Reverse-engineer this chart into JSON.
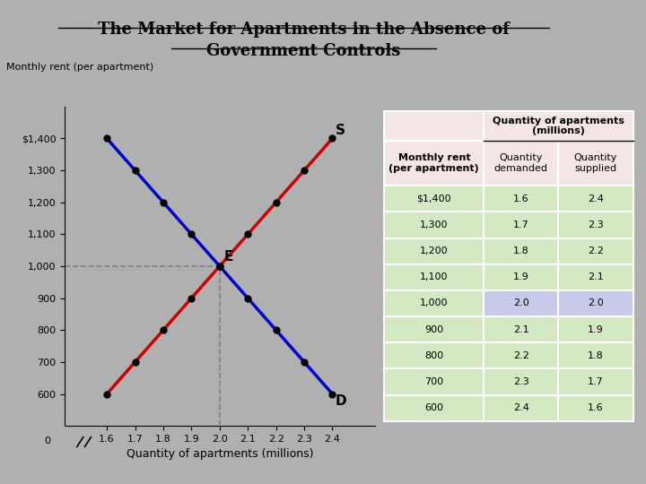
{
  "title_line1": "The Market for Apartments in the Absence of",
  "title_line2": "Government Controls",
  "ylabel": "Monthly rent (per apartment)",
  "xlabel": "Quantity of apartments (millions)",
  "background_color": "#b0b0b0",
  "supply_x": [
    1.6,
    1.7,
    1.8,
    1.9,
    2.0,
    2.1,
    2.2,
    2.3,
    2.4
  ],
  "supply_y": [
    600,
    700,
    800,
    900,
    1000,
    1100,
    1200,
    1300,
    1400
  ],
  "demand_x": [
    1.6,
    1.7,
    1.8,
    1.9,
    2.0,
    2.1,
    2.2,
    2.3,
    2.4
  ],
  "demand_y": [
    1400,
    1300,
    1200,
    1100,
    1000,
    900,
    800,
    700,
    600
  ],
  "supply_color": "#cc0000",
  "demand_color": "#0000cc",
  "equilibrium_x": 2.0,
  "equilibrium_y": 1000,
  "eq_label": "E",
  "supply_label": "S",
  "demand_label": "D",
  "yticks": [
    600,
    700,
    800,
    900,
    1000,
    1100,
    1200,
    1300,
    1400
  ],
  "ytick_labels": [
    "600",
    "700",
    "800",
    "900",
    "1,000",
    "1,100",
    "1,200",
    "1,300",
    "$1,400"
  ],
  "xticks": [
    1.6,
    1.7,
    1.8,
    1.9,
    2.0,
    2.1,
    2.2,
    2.3,
    2.4
  ],
  "xlim": [
    1.45,
    2.55
  ],
  "ylim": [
    500,
    1500
  ],
  "table_header_bg": "#f5e6e6",
  "table_data_bg": "#d4e8c4",
  "table_eq_bg": "#c8c8e8",
  "table_monthly_rent": [
    "$1,400",
    "1,300",
    "1,200",
    "1,100",
    "1,000",
    "900",
    "800",
    "700",
    "600"
  ],
  "table_qty_demanded": [
    "1.6",
    "1.7",
    "1.8",
    "1.9",
    "2.0",
    "2.1",
    "2.2",
    "2.3",
    "2.4"
  ],
  "table_qty_supplied": [
    "2.4",
    "2.3",
    "2.2",
    "2.1",
    "2.0",
    "1.9",
    "1.8",
    "1.7",
    "1.6"
  ],
  "eq_row_index": 4
}
